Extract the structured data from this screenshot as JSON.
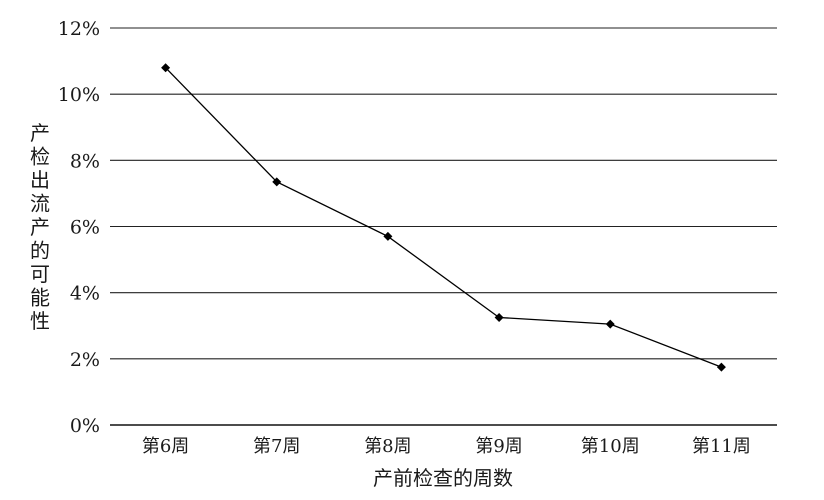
{
  "chart_data": {
    "type": "line",
    "title": "",
    "xlabel": "产前检查的周数",
    "ylabel": "产检出流产的可能性",
    "categories": [
      "第6周",
      "第7周",
      "第8周",
      "第9周",
      "第10周",
      "第11周"
    ],
    "series": [
      {
        "name": "",
        "values": [
          10.8,
          7.35,
          5.7,
          3.25,
          3.05,
          1.75
        ],
        "color": "#000000",
        "marker": "diamond"
      }
    ],
    "ylim": [
      0,
      12
    ],
    "yticks": [
      0,
      2,
      4,
      6,
      8,
      10,
      12
    ],
    "ytick_labels": [
      "0%",
      "2%",
      "4%",
      "6%",
      "8%",
      "10%",
      "12%"
    ],
    "grid": true,
    "legend": "none"
  }
}
